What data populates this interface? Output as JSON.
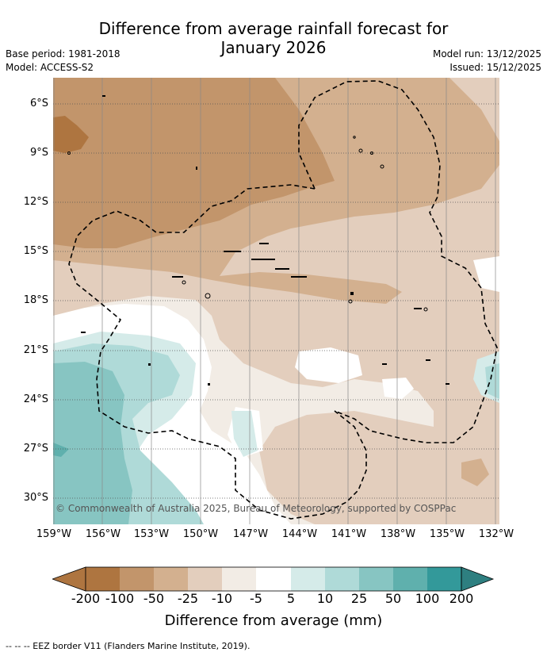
{
  "title_line1": "Difference from average rainfall forecast for",
  "title_line2": "January 2026",
  "base_period": "Base period: 1981-2018",
  "model": "Model: ACCESS-S2",
  "model_run": "Model run: 13/12/2025",
  "issued": "Issued: 15/12/2025",
  "copyright": "© Commonwealth of Australia 2025, Bureau of Meteorology, supported by COSPPac",
  "lat_labels": [
    "6°S",
    "9°S",
    "12°S",
    "15°S",
    "18°S",
    "21°S",
    "24°S",
    "27°S",
    "30°S"
  ],
  "lon_labels": [
    "159°W",
    "156°W",
    "153°W",
    "150°W",
    "147°W",
    "144°W",
    "141°W",
    "138°W",
    "135°W",
    "132°W"
  ],
  "colorbar": {
    "ticks": [
      "-200",
      "-100",
      "-50",
      "-25",
      "-10",
      "-5",
      "5",
      "10",
      "25",
      "50",
      "100",
      "200"
    ],
    "colors": [
      "#ae7540",
      "#c2956b",
      "#d3b08f",
      "#e3cebd",
      "#f2ece5",
      "#ffffff",
      "#d5ebe9",
      "#afdad8",
      "#87c5c2",
      "#5fb0ad",
      "#33999a",
      "#2e7f80"
    ],
    "label": "Difference from average (mm)"
  },
  "footer": "-- -- -- EEZ border V11 (Flanders Marine Institute, 2019)."
}
